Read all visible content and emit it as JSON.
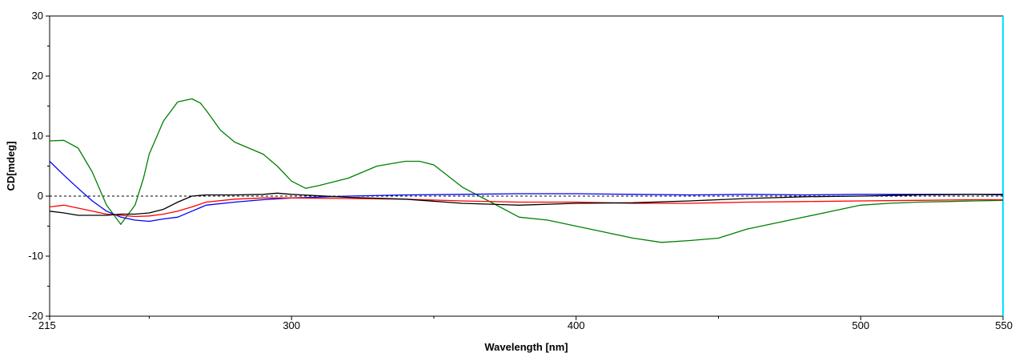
{
  "chart_data": {
    "type": "line",
    "title": "",
    "xlabel": "Wavelength [nm]",
    "ylabel": "CD[mdeg]",
    "xlim": [
      215,
      550
    ],
    "ylim": [
      -20,
      30
    ],
    "x_ticks": [
      215,
      300,
      400,
      500,
      550
    ],
    "x_tick_labels": [
      "215",
      "300",
      "400",
      "500",
      "550"
    ],
    "y_ticks": [
      -20,
      -10,
      0,
      10,
      20,
      30
    ],
    "y_tick_labels": [
      "-20",
      "-10",
      "0",
      "10",
      "20",
      "30"
    ],
    "x_minor_ticks": [
      250,
      350,
      450
    ],
    "y_minor_ticks": [
      -15,
      -5,
      5,
      15,
      25
    ],
    "zero_line": true,
    "grid": false,
    "legend": "none",
    "series": [
      {
        "color": "#008000",
        "x": [
          215,
          220,
          225,
          230,
          235,
          240,
          245,
          248,
          250,
          255,
          260,
          265,
          268,
          270,
          275,
          280,
          290,
          295,
          300,
          305,
          310,
          320,
          330,
          340,
          345,
          350,
          360,
          370,
          380,
          390,
          400,
          410,
          420,
          430,
          440,
          450,
          460,
          470,
          480,
          490,
          500,
          510,
          520,
          530,
          540,
          550
        ],
        "y": [
          9.2,
          9.3,
          8.0,
          4.0,
          -1.5,
          -4.7,
          -1.5,
          3.0,
          7.0,
          12.5,
          15.7,
          16.2,
          15.5,
          14.3,
          11.0,
          9.0,
          7.0,
          5.0,
          2.5,
          1.3,
          1.8,
          3.0,
          5.0,
          5.8,
          5.8,
          5.2,
          1.5,
          -1.0,
          -3.5,
          -4.0,
          -5.0,
          -6.0,
          -7.0,
          -7.7,
          -7.4,
          -7.0,
          -5.5,
          -4.5,
          -3.5,
          -2.5,
          -1.5,
          -1.2,
          -1.0,
          -0.9,
          -0.8,
          -0.7
        ]
      },
      {
        "color": "#0000ff",
        "x": [
          215,
          220,
          225,
          230,
          235,
          240,
          245,
          250,
          255,
          260,
          265,
          270,
          280,
          290,
          300,
          320,
          340,
          360,
          380,
          400,
          420,
          440,
          460,
          480,
          500,
          520,
          540,
          550
        ],
        "y": [
          5.8,
          3.5,
          1.3,
          -0.8,
          -2.5,
          -3.5,
          -4.0,
          -4.2,
          -3.8,
          -3.5,
          -2.5,
          -1.5,
          -1.0,
          -0.6,
          -0.3,
          0.0,
          0.2,
          0.3,
          0.4,
          0.4,
          0.3,
          0.2,
          0.3,
          0.2,
          0.3,
          0.3,
          0.3,
          0.2
        ]
      },
      {
        "color": "#ff0000",
        "x": [
          215,
          220,
          225,
          230,
          235,
          240,
          245,
          250,
          255,
          260,
          265,
          270,
          280,
          290,
          300,
          320,
          340,
          360,
          380,
          400,
          420,
          440,
          460,
          480,
          500,
          520,
          540,
          550
        ],
        "y": [
          -1.8,
          -1.5,
          -2.0,
          -2.5,
          -3.0,
          -3.2,
          -3.4,
          -3.3,
          -3.0,
          -2.5,
          -1.8,
          -1.0,
          -0.5,
          -0.3,
          -0.3,
          -0.4,
          -0.5,
          -0.8,
          -1.0,
          -1.0,
          -1.2,
          -1.2,
          -1.0,
          -0.9,
          -0.8,
          -0.7,
          -0.6,
          -0.6
        ]
      },
      {
        "color": "#000000",
        "x": [
          215,
          220,
          225,
          230,
          235,
          240,
          245,
          250,
          255,
          260,
          265,
          270,
          280,
          290,
          295,
          300,
          320,
          340,
          360,
          380,
          400,
          420,
          440,
          460,
          480,
          500,
          520,
          540,
          550
        ],
        "y": [
          -2.5,
          -2.8,
          -3.2,
          -3.2,
          -3.2,
          -3.0,
          -3.0,
          -2.8,
          -2.2,
          -1.0,
          0.0,
          0.2,
          0.2,
          0.3,
          0.5,
          0.3,
          -0.2,
          -0.5,
          -1.2,
          -1.5,
          -1.2,
          -1.1,
          -0.8,
          -0.4,
          -0.1,
          0.0,
          0.2,
          0.3,
          0.3
        ]
      }
    ]
  }
}
